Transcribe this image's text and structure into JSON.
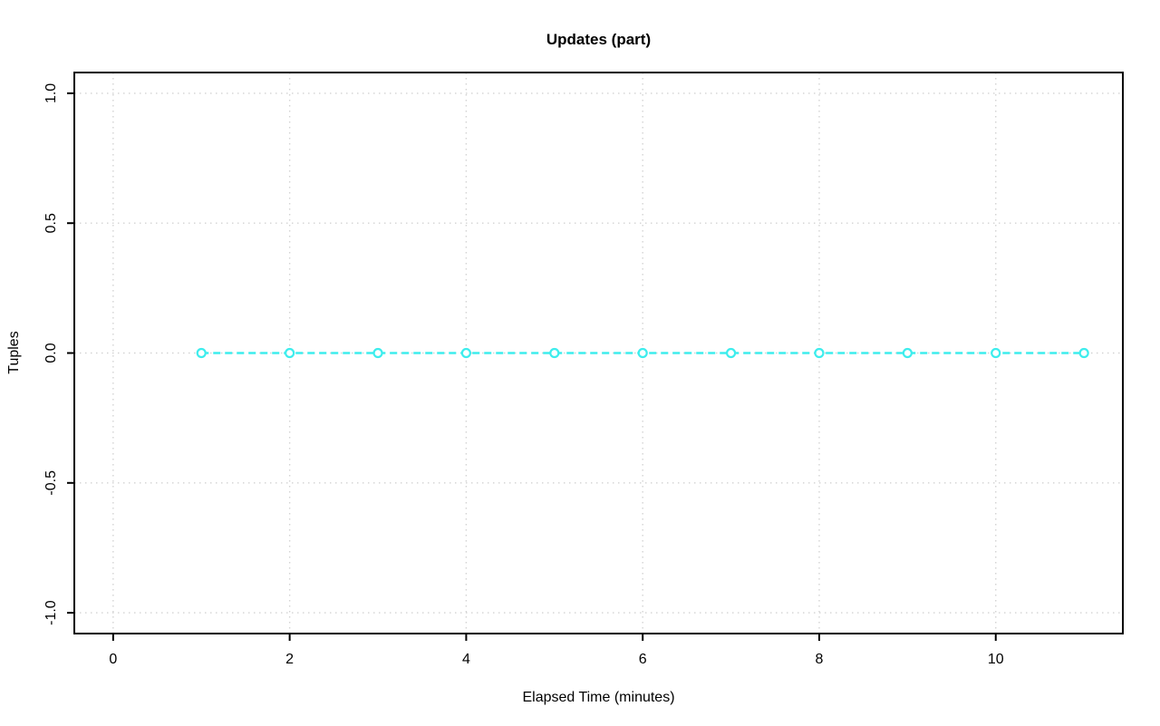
{
  "chart_data": {
    "type": "line",
    "title": "Updates (part)",
    "xlabel": "Elapsed Time (minutes)",
    "ylabel": "Tuples",
    "x": [
      1,
      2,
      3,
      4,
      5,
      6,
      7,
      8,
      9,
      10,
      11
    ],
    "y": [
      0,
      0,
      0,
      0,
      0,
      0,
      0,
      0,
      0,
      0,
      0
    ],
    "xlim": [
      -0.44,
      11.44
    ],
    "ylim": [
      -1.08,
      1.08
    ],
    "xticks": [
      0,
      2,
      4,
      6,
      8,
      10
    ],
    "xtick_labels": [
      "0",
      "2",
      "4",
      "6",
      "8",
      "10"
    ],
    "yticks": [
      -1.0,
      -0.5,
      0.0,
      0.5,
      1.0
    ],
    "ytick_labels": [
      "-1.0",
      "-0.5",
      "0.0",
      "0.5",
      "1.0"
    ],
    "grid": true,
    "legend": "none",
    "series_color": "#3deded",
    "grid_color": "#d3d3d3",
    "axis_color": "#000000",
    "background_color": "#ffffff",
    "line_style": "dashed",
    "point_style": "open-circle",
    "grid_style": "dotted"
  }
}
